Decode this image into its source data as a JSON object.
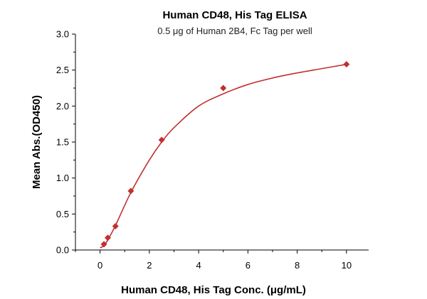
{
  "chart_data": {
    "type": "scatter",
    "title": "Human CD48, His Tag ELISA",
    "subtitle": "0.5 μg of Human 2B4, Fc Tag per well",
    "xlabel": "Human CD48, His Tag Conc. (μg/mL)",
    "ylabel": "Mean Abs.(OD450)",
    "xlim": [
      -1,
      10.9
    ],
    "ylim": [
      0,
      3.0
    ],
    "xticks": [
      0,
      2,
      4,
      6,
      8,
      10
    ],
    "yticks": [
      0.0,
      0.5,
      1.0,
      1.5,
      2.0,
      2.5,
      3.0
    ],
    "xtick_labels": [
      "0",
      "2",
      "4",
      "6",
      "8",
      "10"
    ],
    "ytick_labels": [
      "0.0",
      "0.5",
      "1.0",
      "1.5",
      "2.0",
      "2.5",
      "3.0"
    ],
    "grid": false,
    "legend": "none",
    "series": [
      {
        "marker": "diamond",
        "color": "#c0302f",
        "x": [
          0.156,
          0.3125,
          0.625,
          1.25,
          2.5,
          5,
          10
        ],
        "y": [
          0.08,
          0.17,
          0.33,
          0.82,
          1.53,
          2.25,
          2.58
        ]
      }
    ],
    "fit_curve": {
      "color": "#c0302f",
      "x": [
        0,
        0.156,
        0.3125,
        0.625,
        1.25,
        2,
        2.5,
        3,
        4,
        5,
        6,
        7,
        8,
        9,
        10
      ],
      "y": [
        0.03,
        0.06,
        0.14,
        0.34,
        0.8,
        1.25,
        1.5,
        1.7,
        2.0,
        2.17,
        2.3,
        2.39,
        2.46,
        2.52,
        2.58
      ]
    }
  }
}
